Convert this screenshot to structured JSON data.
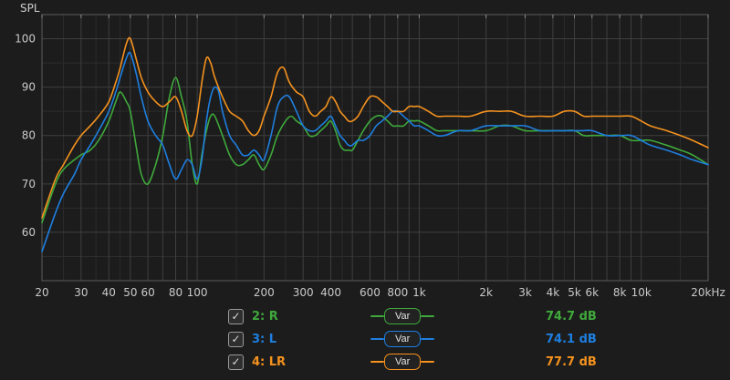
{
  "colors": {
    "background": "#1c1c1c",
    "grid_major": "#3f3f3f",
    "grid_minor": "#2c2c2c",
    "axis_border": "#5c5c5c",
    "axis_text": "#c9c9c9",
    "green": "#3fa93c",
    "blue": "#1e7fe0",
    "orange": "#f5921e"
  },
  "legend": {
    "var_label": "Var"
  },
  "chart_data": {
    "type": "line",
    "ylabel": "SPL",
    "x_scale": "log",
    "xlim": [
      20,
      20000
    ],
    "ylim": [
      50,
      105
    ],
    "grid": true,
    "y_major_ticks": [
      60,
      70,
      80,
      90,
      100
    ],
    "x_major_gridlines": [
      20,
      30,
      40,
      50,
      60,
      70,
      80,
      90,
      100,
      200,
      300,
      400,
      500,
      600,
      700,
      800,
      900,
      1000,
      2000,
      3000,
      4000,
      5000,
      6000,
      7000,
      8000,
      9000,
      10000,
      20000
    ],
    "x_minor_gridlines": [
      25,
      35,
      45,
      150,
      250,
      350,
      450,
      1500,
      2500,
      3500,
      4500,
      15000
    ],
    "x_labels": [
      {
        "f": 20,
        "t": "20"
      },
      {
        "f": 30,
        "t": "30"
      },
      {
        "f": 40,
        "t": "40"
      },
      {
        "f": 50,
        "t": "50"
      },
      {
        "f": 60,
        "t": "60"
      },
      {
        "f": 80,
        "t": "80"
      },
      {
        "f": 100,
        "t": "100"
      },
      {
        "f": 200,
        "t": "200"
      },
      {
        "f": 300,
        "t": "300"
      },
      {
        "f": 400,
        "t": "400"
      },
      {
        "f": 600,
        "t": "600"
      },
      {
        "f": 800,
        "t": "800"
      },
      {
        "f": 1000,
        "t": "1k"
      },
      {
        "f": 2000,
        "t": "2k"
      },
      {
        "f": 3000,
        "t": "3k"
      },
      {
        "f": 4000,
        "t": "4k"
      },
      {
        "f": 5000,
        "t": "5k"
      },
      {
        "f": 6000,
        "t": "6k"
      },
      {
        "f": 8000,
        "t": "8k"
      },
      {
        "f": 10000,
        "t": "10k"
      },
      {
        "f": 20000,
        "t": "20kHz"
      }
    ],
    "series": [
      {
        "name": "2: R",
        "color": "#3fa93c",
        "checked": true,
        "value_label": "74.7 dB",
        "points": [
          [
            20,
            62
          ],
          [
            23,
            70
          ],
          [
            25,
            73
          ],
          [
            28,
            75
          ],
          [
            30,
            76
          ],
          [
            33,
            77
          ],
          [
            36,
            79
          ],
          [
            40,
            83
          ],
          [
            43,
            87
          ],
          [
            45,
            89
          ],
          [
            48,
            87
          ],
          [
            50,
            85
          ],
          [
            53,
            78
          ],
          [
            56,
            72
          ],
          [
            60,
            70
          ],
          [
            65,
            74
          ],
          [
            70,
            80
          ],
          [
            75,
            88
          ],
          [
            80,
            92
          ],
          [
            85,
            88
          ],
          [
            90,
            83
          ],
          [
            95,
            74
          ],
          [
            100,
            70
          ],
          [
            105,
            76
          ],
          [
            110,
            81
          ],
          [
            115,
            84
          ],
          [
            120,
            84
          ],
          [
            130,
            80
          ],
          [
            140,
            76
          ],
          [
            150,
            74
          ],
          [
            160,
            74
          ],
          [
            170,
            75
          ],
          [
            180,
            76
          ],
          [
            190,
            74
          ],
          [
            200,
            73
          ],
          [
            215,
            76
          ],
          [
            230,
            80
          ],
          [
            250,
            83
          ],
          [
            265,
            84
          ],
          [
            280,
            83
          ],
          [
            300,
            82
          ],
          [
            320,
            80
          ],
          [
            340,
            80
          ],
          [
            360,
            81
          ],
          [
            380,
            82
          ],
          [
            400,
            83
          ],
          [
            420,
            81
          ],
          [
            440,
            78
          ],
          [
            460,
            77
          ],
          [
            480,
            77
          ],
          [
            500,
            77
          ],
          [
            530,
            79
          ],
          [
            560,
            81
          ],
          [
            600,
            83
          ],
          [
            640,
            84
          ],
          [
            680,
            84
          ],
          [
            720,
            83
          ],
          [
            760,
            82
          ],
          [
            800,
            82
          ],
          [
            850,
            82
          ],
          [
            900,
            83
          ],
          [
            950,
            83
          ],
          [
            1000,
            83
          ],
          [
            1100,
            82
          ],
          [
            1200,
            81
          ],
          [
            1300,
            81
          ],
          [
            1500,
            81
          ],
          [
            1700,
            81
          ],
          [
            2000,
            81
          ],
          [
            2300,
            82
          ],
          [
            2600,
            82
          ],
          [
            3000,
            81
          ],
          [
            3500,
            81
          ],
          [
            4000,
            81
          ],
          [
            4500,
            81
          ],
          [
            5000,
            81
          ],
          [
            5500,
            80
          ],
          [
            6000,
            80
          ],
          [
            7000,
            80
          ],
          [
            8000,
            80
          ],
          [
            9000,
            79
          ],
          [
            10000,
            79
          ],
          [
            11000,
            79
          ],
          [
            13000,
            78
          ],
          [
            15000,
            77
          ],
          [
            17000,
            76
          ],
          [
            20000,
            74
          ]
        ]
      },
      {
        "name": "3: L",
        "color": "#1e7fe0",
        "checked": true,
        "value_label": "74.1 dB",
        "points": [
          [
            20,
            56
          ],
          [
            23,
            64
          ],
          [
            25,
            68
          ],
          [
            28,
            72
          ],
          [
            30,
            75
          ],
          [
            33,
            78
          ],
          [
            36,
            81
          ],
          [
            40,
            85
          ],
          [
            43,
            89
          ],
          [
            45,
            92
          ],
          [
            48,
            96
          ],
          [
            50,
            97
          ],
          [
            53,
            93
          ],
          [
            56,
            88
          ],
          [
            60,
            83
          ],
          [
            65,
            80
          ],
          [
            70,
            78
          ],
          [
            75,
            74
          ],
          [
            80,
            71
          ],
          [
            85,
            73
          ],
          [
            90,
            75
          ],
          [
            95,
            74
          ],
          [
            100,
            71
          ],
          [
            105,
            75
          ],
          [
            110,
            83
          ],
          [
            115,
            88
          ],
          [
            120,
            90
          ],
          [
            125,
            89
          ],
          [
            130,
            85
          ],
          [
            140,
            80
          ],
          [
            150,
            78
          ],
          [
            160,
            76
          ],
          [
            170,
            76
          ],
          [
            180,
            77
          ],
          [
            190,
            76
          ],
          [
            200,
            75
          ],
          [
            215,
            80
          ],
          [
            230,
            86
          ],
          [
            245,
            88
          ],
          [
            260,
            88
          ],
          [
            280,
            85
          ],
          [
            300,
            82
          ],
          [
            320,
            81
          ],
          [
            340,
            81
          ],
          [
            360,
            82
          ],
          [
            380,
            83
          ],
          [
            400,
            84
          ],
          [
            420,
            82
          ],
          [
            440,
            80
          ],
          [
            460,
            79
          ],
          [
            480,
            78
          ],
          [
            500,
            78
          ],
          [
            530,
            79
          ],
          [
            560,
            79
          ],
          [
            600,
            80
          ],
          [
            640,
            82
          ],
          [
            680,
            83
          ],
          [
            720,
            84
          ],
          [
            760,
            85
          ],
          [
            800,
            85
          ],
          [
            850,
            84
          ],
          [
            900,
            83
          ],
          [
            950,
            82
          ],
          [
            1000,
            82
          ],
          [
            1100,
            81
          ],
          [
            1200,
            80
          ],
          [
            1300,
            80
          ],
          [
            1500,
            81
          ],
          [
            1700,
            81
          ],
          [
            2000,
            82
          ],
          [
            2300,
            82
          ],
          [
            2600,
            82
          ],
          [
            3000,
            82
          ],
          [
            3500,
            81
          ],
          [
            4000,
            81
          ],
          [
            4500,
            81
          ],
          [
            5000,
            81
          ],
          [
            5500,
            81
          ],
          [
            6000,
            81
          ],
          [
            7000,
            80
          ],
          [
            8000,
            80
          ],
          [
            9000,
            80
          ],
          [
            10000,
            79
          ],
          [
            11000,
            78
          ],
          [
            13000,
            77
          ],
          [
            15000,
            76
          ],
          [
            17000,
            75
          ],
          [
            20000,
            74
          ]
        ]
      },
      {
        "name": "4: LR",
        "color": "#f5921e",
        "checked": true,
        "value_label": "77.7 dB",
        "points": [
          [
            20,
            63
          ],
          [
            23,
            71
          ],
          [
            25,
            74
          ],
          [
            28,
            78
          ],
          [
            30,
            80
          ],
          [
            33,
            82
          ],
          [
            36,
            84
          ],
          [
            40,
            87
          ],
          [
            43,
            91
          ],
          [
            45,
            94
          ],
          [
            48,
            99
          ],
          [
            50,
            100
          ],
          [
            53,
            96
          ],
          [
            56,
            92
          ],
          [
            60,
            89
          ],
          [
            65,
            87
          ],
          [
            70,
            86
          ],
          [
            75,
            87
          ],
          [
            80,
            88
          ],
          [
            85,
            85
          ],
          [
            90,
            81
          ],
          [
            95,
            80
          ],
          [
            100,
            84
          ],
          [
            105,
            91
          ],
          [
            110,
            96
          ],
          [
            115,
            95
          ],
          [
            120,
            92
          ],
          [
            130,
            88
          ],
          [
            140,
            85
          ],
          [
            150,
            84
          ],
          [
            160,
            83
          ],
          [
            170,
            81
          ],
          [
            180,
            80
          ],
          [
            190,
            81
          ],
          [
            200,
            84
          ],
          [
            215,
            88
          ],
          [
            230,
            93
          ],
          [
            245,
            94
          ],
          [
            260,
            91
          ],
          [
            280,
            89
          ],
          [
            300,
            88
          ],
          [
            320,
            85
          ],
          [
            340,
            84
          ],
          [
            360,
            85
          ],
          [
            380,
            86
          ],
          [
            400,
            88
          ],
          [
            420,
            87
          ],
          [
            440,
            85
          ],
          [
            460,
            84
          ],
          [
            480,
            83
          ],
          [
            500,
            83
          ],
          [
            530,
            84
          ],
          [
            560,
            86
          ],
          [
            600,
            88
          ],
          [
            640,
            88
          ],
          [
            680,
            87
          ],
          [
            720,
            86
          ],
          [
            760,
            85
          ],
          [
            800,
            85
          ],
          [
            850,
            85
          ],
          [
            900,
            86
          ],
          [
            950,
            86
          ],
          [
            1000,
            86
          ],
          [
            1100,
            85
          ],
          [
            1200,
            84
          ],
          [
            1300,
            84
          ],
          [
            1500,
            84
          ],
          [
            1700,
            84
          ],
          [
            2000,
            85
          ],
          [
            2300,
            85
          ],
          [
            2600,
            85
          ],
          [
            3000,
            84
          ],
          [
            3500,
            84
          ],
          [
            4000,
            84
          ],
          [
            4500,
            85
          ],
          [
            5000,
            85
          ],
          [
            5500,
            84
          ],
          [
            6000,
            84
          ],
          [
            7000,
            84
          ],
          [
            8000,
            84
          ],
          [
            9000,
            84
          ],
          [
            10000,
            83
          ],
          [
            11000,
            82
          ],
          [
            13000,
            81
          ],
          [
            15000,
            80
          ],
          [
            17000,
            79
          ],
          [
            20000,
            77.5
          ]
        ]
      }
    ]
  }
}
